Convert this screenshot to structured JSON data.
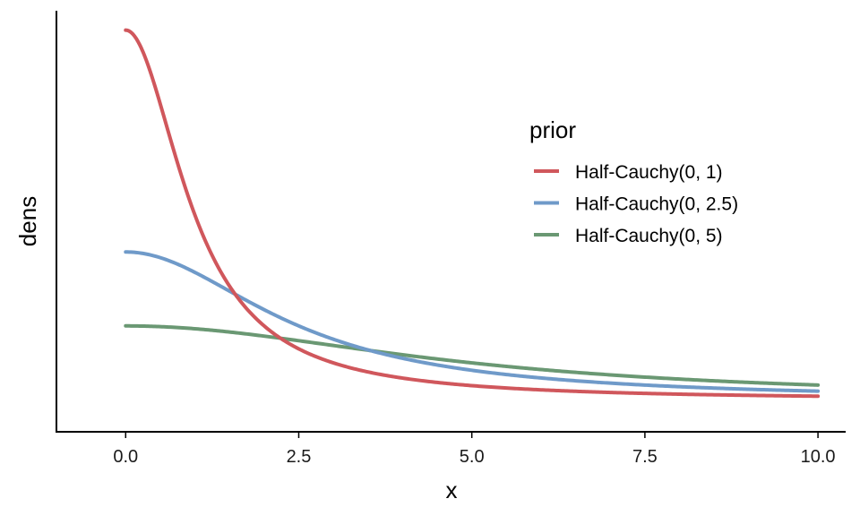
{
  "chart_data": {
    "type": "line",
    "xlabel": "x",
    "ylabel": "dens",
    "xlim": [
      -1.0,
      10.4
    ],
    "ylim": [
      -0.055,
      0.67
    ],
    "x_ticks": [
      0,
      2.5,
      5,
      7.5,
      10
    ],
    "x_tick_labels": [
      "0.0",
      "2.5",
      "5.0",
      "7.5",
      "10.0"
    ],
    "y_ticks_shown": false,
    "grid": false,
    "legend": {
      "title": "prior",
      "position": "right, inside plot"
    },
    "series": [
      {
        "name": "Half-Cauchy(0, 1)",
        "color": "#d0575c",
        "scale": 1,
        "x": [
          0,
          0.25,
          0.5,
          0.75,
          1,
          1.25,
          1.5,
          2,
          2.5,
          3,
          3.5,
          4,
          5,
          6,
          7,
          8,
          9,
          10
        ],
        "y": [
          0.6366,
          0.5992,
          0.5093,
          0.4074,
          0.3183,
          0.2483,
          0.1959,
          0.1273,
          0.0878,
          0.0637,
          0.0481,
          0.0374,
          0.0245,
          0.0172,
          0.0127,
          0.0098,
          0.0078,
          0.0063
        ]
      },
      {
        "name": "Half-Cauchy(0, 2.5)",
        "color": "#6f9ac9",
        "scale": 2.5,
        "x": [
          0,
          0.5,
          1,
          1.5,
          2,
          2.5,
          3,
          4,
          5,
          6,
          7,
          8,
          9,
          10
        ],
        "y": [
          0.2546,
          0.2448,
          0.2195,
          0.1872,
          0.1553,
          0.1273,
          0.1046,
          0.0716,
          0.0509,
          0.0377,
          0.0289,
          0.0227,
          0.0183,
          0.015
        ]
      },
      {
        "name": "Half-Cauchy(0, 5)",
        "color": "#6a9873",
        "scale": 5,
        "x": [
          0,
          1,
          2,
          3,
          4,
          5,
          6,
          7,
          8,
          9,
          10
        ],
        "y": [
          0.1273,
          0.1224,
          0.1098,
          0.0936,
          0.0776,
          0.0637,
          0.0523,
          0.0432,
          0.0359,
          0.0301,
          0.0255
        ]
      }
    ]
  }
}
